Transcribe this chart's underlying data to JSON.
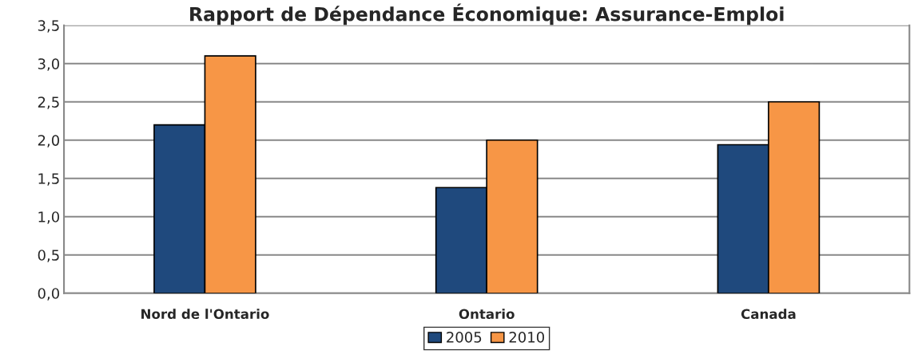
{
  "chart_data": {
    "type": "bar",
    "title": "Rapport de Dépendance Économique: Assurance-Emploi",
    "categories": [
      "Nord de l'Ontario",
      "Ontario",
      "Canada"
    ],
    "series": [
      {
        "name": "2005",
        "color": "#1f497d",
        "values": [
          2.2,
          1.38,
          1.94
        ]
      },
      {
        "name": "2010",
        "color": "#f79646",
        "values": [
          3.1,
          2.0,
          2.5
        ]
      }
    ],
    "ylim": [
      0,
      3.5
    ],
    "yticks": [
      {
        "value": 0,
        "label": "0,0"
      },
      {
        "value": 0.5,
        "label": "0,5"
      },
      {
        "value": 1,
        "label": "1,0"
      },
      {
        "value": 1.5,
        "label": "1,5"
      },
      {
        "value": 2,
        "label": "2,0"
      },
      {
        "value": 2.5,
        "label": "2,5"
      },
      {
        "value": 3,
        "label": "3,0"
      },
      {
        "value": 3.5,
        "label": "3,5"
      }
    ],
    "grid": "y",
    "legend": "bottom"
  }
}
